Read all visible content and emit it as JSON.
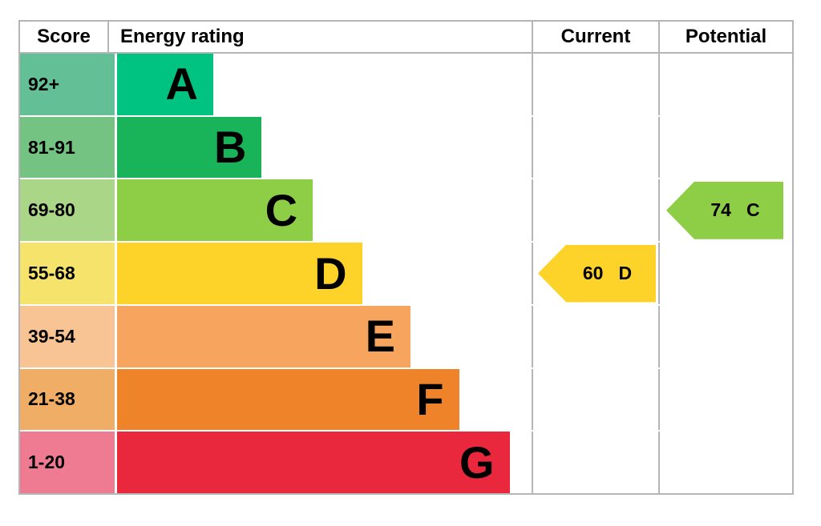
{
  "chart_data": {
    "type": "bar",
    "columns": [
      "Score",
      "Energy rating",
      "Current",
      "Potential"
    ],
    "bands": [
      {
        "letter": "A",
        "score_range": "92+",
        "bar_color": "#00c281",
        "score_cell_color": "#63c096",
        "bar_width_pct": 23.2
      },
      {
        "letter": "B",
        "score_range": "81-91",
        "bar_color": "#19b459",
        "score_cell_color": "#74c382",
        "bar_width_pct": 34.9
      },
      {
        "letter": "C",
        "score_range": "69-80",
        "bar_color": "#8dce46",
        "score_cell_color": "#aad687",
        "bar_width_pct": 47.2
      },
      {
        "letter": "D",
        "score_range": "55-68",
        "bar_color": "#fdd32a",
        "score_cell_color": "#f5e36b",
        "bar_width_pct": 59.1
      },
      {
        "letter": "E",
        "score_range": "39-54",
        "bar_color": "#f7a55e",
        "score_cell_color": "#f9c494",
        "bar_width_pct": 70.8
      },
      {
        "letter": "F",
        "score_range": "21-38",
        "bar_color": "#ee8329",
        "score_cell_color": "#f0ad66",
        "bar_width_pct": 82.5
      },
      {
        "letter": "G",
        "score_range": "1-20",
        "bar_color": "#e9283e",
        "score_cell_color": "#ef7b92",
        "bar_width_pct": 94.7
      }
    ],
    "current": {
      "value": "60",
      "band": "D",
      "color": "#fdd32a",
      "row_index": 3
    },
    "potential": {
      "value": "74",
      "band": "C",
      "color": "#8dce46",
      "row_index": 2
    },
    "layout": {
      "border_color": "#b5b5b5",
      "row_gap_color": "#ffffff",
      "legend_position": "none",
      "grid": false
    }
  }
}
